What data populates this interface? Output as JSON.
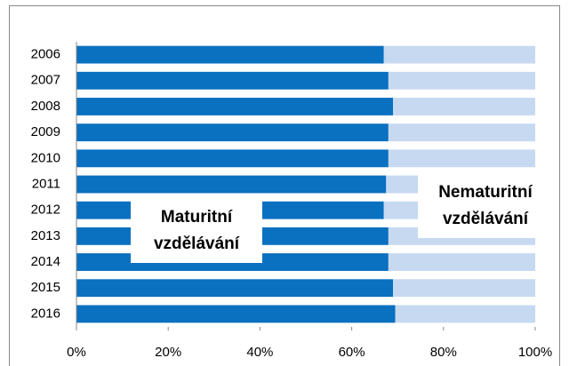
{
  "chart_data": {
    "type": "stacked_bar_horizontal",
    "categories": [
      "2006",
      "2007",
      "2008",
      "2009",
      "2010",
      "2011",
      "2012",
      "2013",
      "2014",
      "2015",
      "2016"
    ],
    "series": [
      {
        "name": "Maturitní vzdělávání",
        "color": "#0a70c0",
        "values": [
          67,
          68,
          69,
          68,
          68,
          67.5,
          67,
          68,
          68,
          69,
          69.5
        ]
      },
      {
        "name": "Nematuritní vzdělávání",
        "color": "#c6d9f1",
        "values": [
          33,
          32,
          31,
          32,
          32,
          32.5,
          33,
          32,
          32,
          31,
          30.5
        ]
      }
    ],
    "xlim": [
      0,
      100
    ],
    "xticks": [
      {
        "value": 0,
        "label": "0%"
      },
      {
        "value": 20,
        "label": "20%"
      },
      {
        "value": 40,
        "label": "40%"
      },
      {
        "value": 60,
        "label": "60%"
      },
      {
        "value": 80,
        "label": "80%"
      },
      {
        "value": 100,
        "label": "100%"
      }
    ],
    "grid": false
  }
}
